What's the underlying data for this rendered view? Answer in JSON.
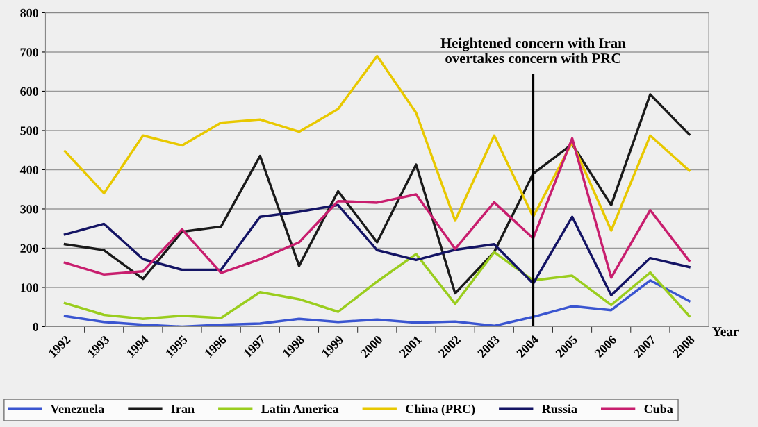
{
  "chart_data": {
    "type": "line",
    "xlabel": "Year",
    "categories": [
      "1992",
      "1993",
      "1994",
      "1995",
      "1996",
      "1997",
      "1998",
      "1999",
      "2000",
      "2001",
      "2002",
      "2003",
      "2004",
      "2005",
      "2006",
      "2007",
      "2008"
    ],
    "series": [
      {
        "name": "Venezuela",
        "color": "#3a55d0",
        "values": [
          27,
          12,
          5,
          0,
          5,
          8,
          20,
          12,
          18,
          10,
          13,
          2,
          25,
          52,
          42,
          118,
          65
        ]
      },
      {
        "name": "Iran",
        "color": "#1a1a1a",
        "values": [
          210,
          195,
          122,
          242,
          255,
          435,
          155,
          345,
          215,
          413,
          85,
          190,
          390,
          465,
          310,
          592,
          490
        ]
      },
      {
        "name": "Latin America",
        "color": "#9acd1e",
        "values": [
          60,
          30,
          20,
          28,
          22,
          88,
          70,
          38,
          115,
          185,
          58,
          190,
          118,
          130,
          55,
          138,
          27
        ]
      },
      {
        "name": "China (PRC)",
        "color": "#e8c800",
        "values": [
          447,
          340,
          487,
          462,
          520,
          528,
          497,
          555,
          690,
          545,
          270,
          487,
          280,
          470,
          245,
          487,
          398
        ]
      },
      {
        "name": "Russia",
        "color": "#141464",
        "values": [
          235,
          262,
          172,
          145,
          145,
          280,
          293,
          310,
          195,
          170,
          196,
          210,
          110,
          280,
          80,
          175,
          152
        ]
      },
      {
        "name": "Cuba",
        "color": "#c81e6e",
        "values": [
          163,
          133,
          141,
          248,
          137,
          172,
          215,
          320,
          316,
          337,
          198,
          317,
          225,
          480,
          125,
          297,
          168
        ]
      }
    ],
    "ylim": [
      0,
      800
    ],
    "yticks": [
      0,
      100,
      200,
      300,
      400,
      500,
      600,
      700,
      800
    ],
    "grid": "y",
    "legend": "bottom",
    "marker": "none",
    "line_style": "solid",
    "ref_lines": [
      {
        "axis": "x",
        "value": "2004",
        "label": "Heightened concern with Iran\novertakes concern with PRC",
        "color": "#000000",
        "line_style": "solid"
      }
    ]
  }
}
